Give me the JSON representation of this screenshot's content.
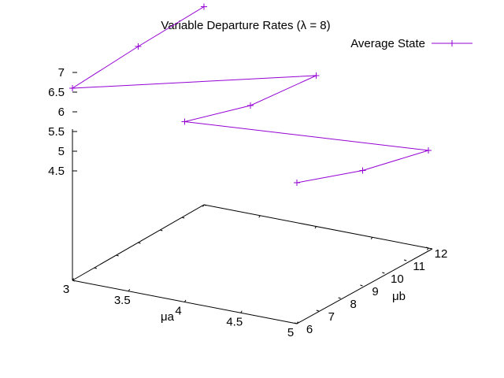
{
  "chart_data": {
    "type": "line",
    "projection": "3d",
    "title": "Variable Departure Rates (λ = 8)",
    "xlabel": "μa",
    "ylabel": "μb",
    "zlabel": "",
    "xlim": [
      3,
      5
    ],
    "ylim": [
      6,
      12
    ],
    "zlim": [
      4,
      7
    ],
    "xticks": [
      "3",
      "3.5",
      "4",
      "4.5",
      "5"
    ],
    "yticks": [
      "6",
      "7",
      "8",
      "9",
      "10",
      "11",
      "12"
    ],
    "zticks": [
      "4.5",
      "5",
      "5.5",
      "6",
      "6.5",
      "7"
    ],
    "legend": "top-right",
    "grid": false,
    "series": [
      {
        "name": "Average State",
        "color": "#9400d3",
        "points": [
          {
            "x": 3,
            "y": 12,
            "z": 6.75
          },
          {
            "x": 3,
            "y": 9,
            "z": 6.7
          },
          {
            "x": 3,
            "y": 6,
            "z": 6.6
          },
          {
            "x": 4,
            "y": 12,
            "z": 5.55
          },
          {
            "x": 4,
            "y": 9,
            "z": 5.75
          },
          {
            "x": 4,
            "y": 6,
            "z": 6.3
          },
          {
            "x": 5,
            "y": 12,
            "z": 4.2
          },
          {
            "x": 5,
            "y": 9,
            "z": 4.65
          },
          {
            "x": 5,
            "y": 6,
            "z": 5.3
          }
        ]
      }
    ]
  }
}
